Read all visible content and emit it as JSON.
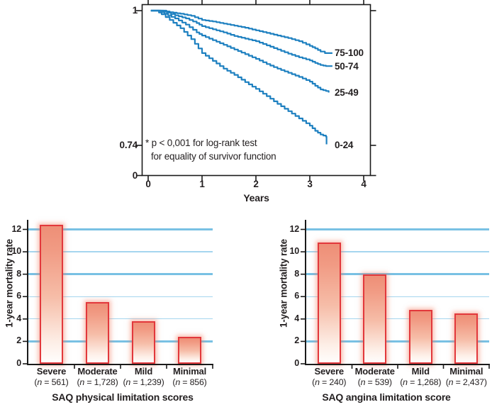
{
  "chart_data": [
    {
      "id": "km-survival",
      "type": "line",
      "subtype": "kaplan-meier-step",
      "xlabel": "Years",
      "x_ticks": [
        "0",
        "1",
        "2",
        "3",
        "4"
      ],
      "y_ticks": [
        "1",
        "0.74",
        "0"
      ],
      "y_display_range": [
        0.74,
        1
      ],
      "x_range": [
        0,
        4.1
      ],
      "grid": "off",
      "legend_position": "right-of-curve-ends",
      "annotation": {
        "line1": "* p < 0,001 for log-rank test",
        "line2": "for equality of survivor function"
      },
      "series": [
        {
          "name": "75-100",
          "points": [
            [
              0.05,
              1
            ],
            [
              0.28,
              1
            ],
            [
              0.4,
              0.997
            ],
            [
              0.6,
              0.994
            ],
            [
              0.8,
              0.99
            ],
            [
              1,
              0.982
            ],
            [
              1.2,
              0.979
            ],
            [
              1.4,
              0.975
            ],
            [
              1.6,
              0.971
            ],
            [
              1.8,
              0.967
            ],
            [
              2,
              0.962
            ],
            [
              2.2,
              0.957
            ],
            [
              2.4,
              0.952
            ],
            [
              2.6,
              0.947
            ],
            [
              2.8,
              0.941
            ],
            [
              3,
              0.932
            ],
            [
              3.1,
              0.927
            ],
            [
              3.2,
              0.921
            ],
            [
              3.28,
              0.918
            ],
            [
              3.42,
              0.918
            ]
          ]
        },
        {
          "name": "50-74",
          "points": [
            [
              0.05,
              1
            ],
            [
              0.22,
              1
            ],
            [
              0.35,
              0.996
            ],
            [
              0.5,
              0.991
            ],
            [
              0.7,
              0.985
            ],
            [
              0.9,
              0.976
            ],
            [
              1,
              0.97
            ],
            [
              1.2,
              0.964
            ],
            [
              1.4,
              0.958
            ],
            [
              1.6,
              0.951
            ],
            [
              1.8,
              0.946
            ],
            [
              2,
              0.941
            ],
            [
              2.2,
              0.933
            ],
            [
              2.4,
              0.925
            ],
            [
              2.6,
              0.917
            ],
            [
              2.8,
              0.91
            ],
            [
              3,
              0.904
            ],
            [
              3.1,
              0.899
            ],
            [
              3.2,
              0.895
            ],
            [
              3.3,
              0.893
            ],
            [
              3.42,
              0.893
            ]
          ]
        },
        {
          "name": "25-49",
          "points": [
            [
              0.05,
              1
            ],
            [
              0.18,
              1
            ],
            [
              0.3,
              0.994
            ],
            [
              0.5,
              0.985
            ],
            [
              0.7,
              0.973
            ],
            [
              0.9,
              0.958
            ],
            [
              1,
              0.952
            ],
            [
              1.2,
              0.943
            ],
            [
              1.4,
              0.934
            ],
            [
              1.6,
              0.925
            ],
            [
              1.8,
              0.916
            ],
            [
              2,
              0.907
            ],
            [
              2.2,
              0.897
            ],
            [
              2.4,
              0.888
            ],
            [
              2.6,
              0.88
            ],
            [
              2.8,
              0.872
            ],
            [
              3,
              0.863
            ],
            [
              3.1,
              0.855
            ],
            [
              3.2,
              0.848
            ],
            [
              3.3,
              0.845
            ],
            [
              3.35,
              0.842
            ]
          ]
        },
        {
          "name": "0-24",
          "points": [
            [
              0.05,
              1
            ],
            [
              0.15,
              1
            ],
            [
              0.25,
              0.993
            ],
            [
              0.4,
              0.982
            ],
            [
              0.6,
              0.966
            ],
            [
              0.8,
              0.945
            ],
            [
              1,
              0.918
            ],
            [
              1.2,
              0.903
            ],
            [
              1.4,
              0.888
            ],
            [
              1.6,
              0.876
            ],
            [
              1.8,
              0.862
            ],
            [
              2,
              0.849
            ],
            [
              2.2,
              0.835
            ],
            [
              2.4,
              0.82
            ],
            [
              2.6,
              0.806
            ],
            [
              2.8,
              0.792
            ],
            [
              3,
              0.778
            ],
            [
              3.1,
              0.768
            ],
            [
              3.2,
              0.761
            ],
            [
              3.3,
              0.757
            ],
            [
              3.31,
              0.742
            ]
          ]
        }
      ]
    },
    {
      "id": "saq-physical",
      "type": "bar",
      "ylabel": "1-year mortality rate",
      "xlabel": "SAQ physical limitation scores",
      "y_ticks": [
        0,
        2,
        4,
        6,
        8,
        10,
        12
      ],
      "ylim": [
        0,
        12.8
      ],
      "grid_values": [
        2,
        4,
        6,
        8,
        10,
        12
      ],
      "grid_thick_values": [
        2,
        8,
        12
      ],
      "categories": [
        "Severe",
        "Moderate",
        "Mild",
        "Minimal"
      ],
      "counts": [
        "561",
        "1,728",
        "1,239",
        "856"
      ],
      "values": [
        12.4,
        5.5,
        3.8,
        2.4
      ]
    },
    {
      "id": "saq-angina",
      "type": "bar",
      "ylabel": "1-year mortality rate",
      "xlabel": "SAQ angina limitation score",
      "y_ticks": [
        0,
        2,
        4,
        6,
        8,
        10,
        12
      ],
      "ylim": [
        0,
        12.8
      ],
      "grid_values": [
        2,
        4,
        6,
        8,
        10,
        12
      ],
      "grid_thick_values": [
        2,
        8,
        12
      ],
      "categories": [
        "Severe",
        "Moderate",
        "Mild",
        "Minimal"
      ],
      "counts": [
        "240",
        "539",
        "1,268",
        "2,437"
      ],
      "values": [
        10.8,
        8,
        4.8,
        4.5
      ]
    }
  ],
  "colors": {
    "curve_blue": "#1e80c0",
    "grid_thick": "#79c1e4",
    "grid_thin": "#a5d6ef",
    "bar_border": "#e2383c",
    "bar_gradient_top": "#ee8f77",
    "bar_gradient_bottom": "#fffdfc",
    "bar_glow": "rgba(243,126,98,0.5)",
    "axis": "#1a1a1a",
    "text": "#231f20"
  }
}
